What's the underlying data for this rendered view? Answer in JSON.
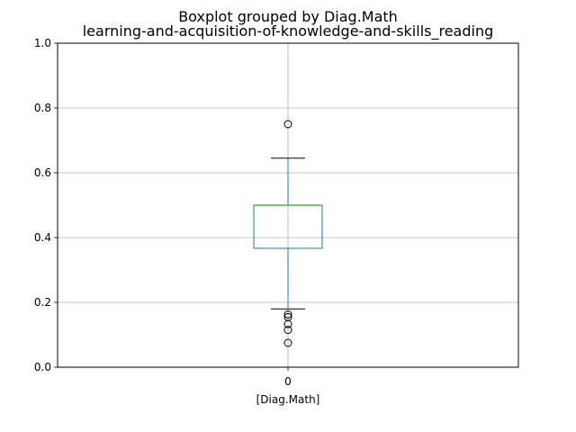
{
  "chart_data": {
    "type": "boxplot",
    "suptitle": "Boxplot grouped by Diag.Math",
    "title": "learning-and-acquisition-of-knowledge-and-skills_reading",
    "xlabel": "[Diag.Math]",
    "ylabel": "",
    "ylim": [
      0,
      1.0
    ],
    "y_ticks": [
      "0.0",
      "0.2",
      "0.4",
      "0.6",
      "0.8",
      "1.0"
    ],
    "grid": true,
    "categories": [
      "0"
    ],
    "boxes": [
      {
        "category": "0",
        "whisker_low": 0.18,
        "q1": 0.367,
        "median": 0.5,
        "q3": 0.5,
        "whisker_high": 0.645,
        "fliers": [
          0.75,
          0.163,
          0.155,
          0.133,
          0.115,
          0.075
        ]
      }
    ],
    "colors": {
      "box": "#1f77b4",
      "median": "#2ca02c",
      "whisker_cap": "#000000",
      "grid": "#b0b0b0"
    }
  }
}
